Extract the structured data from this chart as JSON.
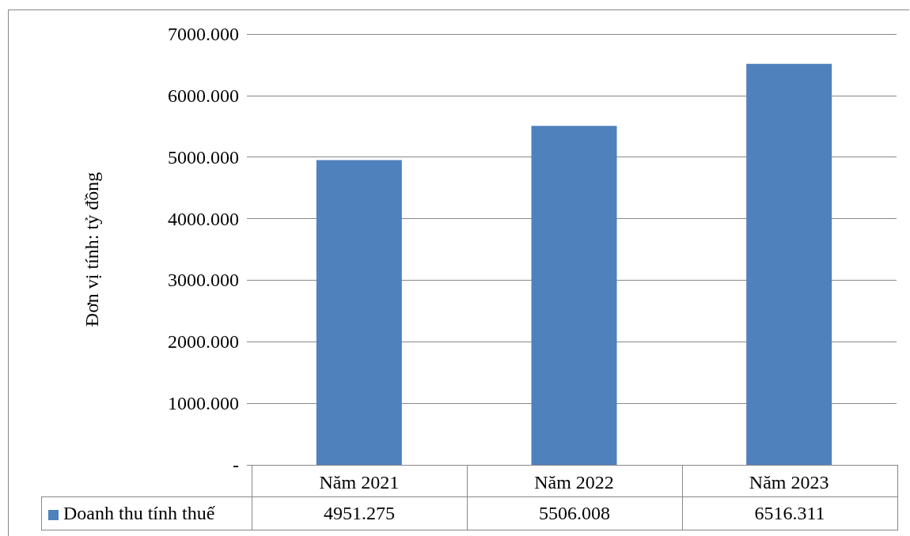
{
  "chart_data": {
    "type": "bar",
    "ylabel": "Đơn vị tính: tỷ đồng",
    "categories": [
      "Năm 2021",
      "Năm 2022",
      "Năm 2023"
    ],
    "series": [
      {
        "name": "Doanh thu tính thuế",
        "color": "#4f81bd",
        "values": [
          4951.275,
          5506.008,
          6516.311
        ]
      }
    ],
    "ylim": [
      0,
      7000
    ],
    "yticks": [
      {
        "value": 0,
        "label": "-"
      },
      {
        "value": 1000,
        "label": "1000.000"
      },
      {
        "value": 2000,
        "label": "2000.000"
      },
      {
        "value": 3000,
        "label": "3000.000"
      },
      {
        "value": 4000,
        "label": "4000.000"
      },
      {
        "value": 5000,
        "label": "5000.000"
      },
      {
        "value": 6000,
        "label": "6000.000"
      },
      {
        "value": 7000,
        "label": "7000.000"
      }
    ],
    "grid": "y",
    "legend": "bottom",
    "data_labels": true
  }
}
